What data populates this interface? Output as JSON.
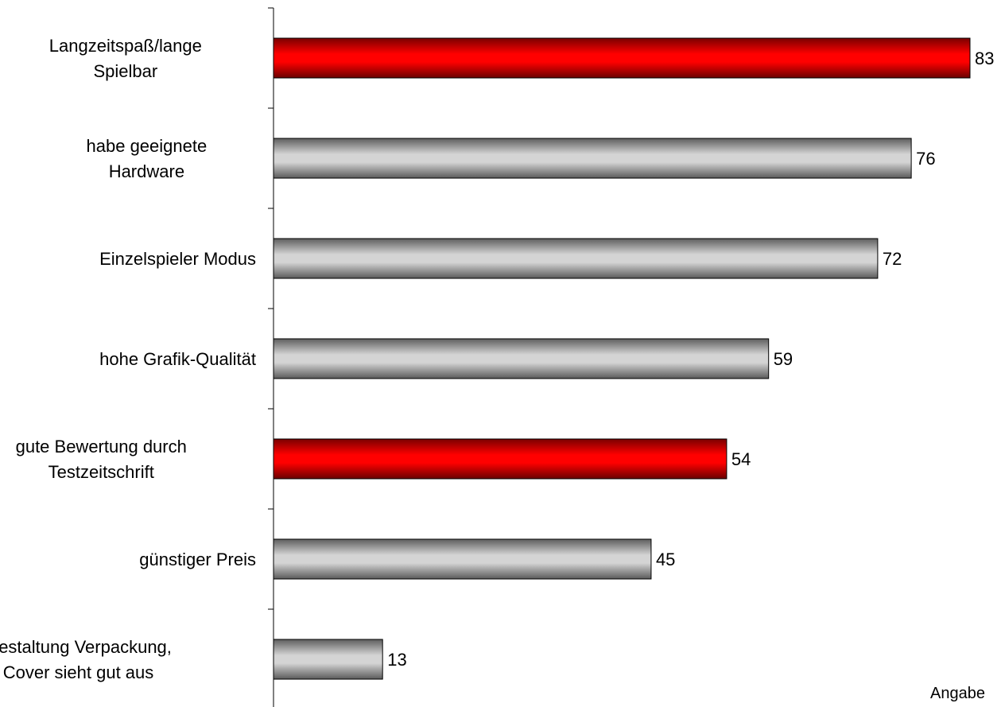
{
  "chart_data": {
    "type": "bar",
    "orientation": "horizontal",
    "categories": [
      [
        "Langzeitspaß/lange",
        "Spielbar"
      ],
      [
        "habe geeignete",
        "Hardware"
      ],
      [
        "Einzelspieler Modus"
      ],
      [
        "hohe Grafik-Qualität"
      ],
      [
        "gute Bewertung durch",
        "Testzeitschrift"
      ],
      [
        "günstiger Preis"
      ],
      [
        "Gestaltung Verpackung,",
        "Cover sieht gut aus"
      ]
    ],
    "values": [
      83,
      76,
      72,
      59,
      54,
      45,
      13
    ],
    "highlight": [
      true,
      false,
      false,
      false,
      true,
      false,
      false
    ],
    "xlim": [
      0,
      83
    ],
    "grid": false,
    "colors": {
      "highlight": "#cc0000",
      "normal": "#999999"
    },
    "note": "Angabe"
  }
}
